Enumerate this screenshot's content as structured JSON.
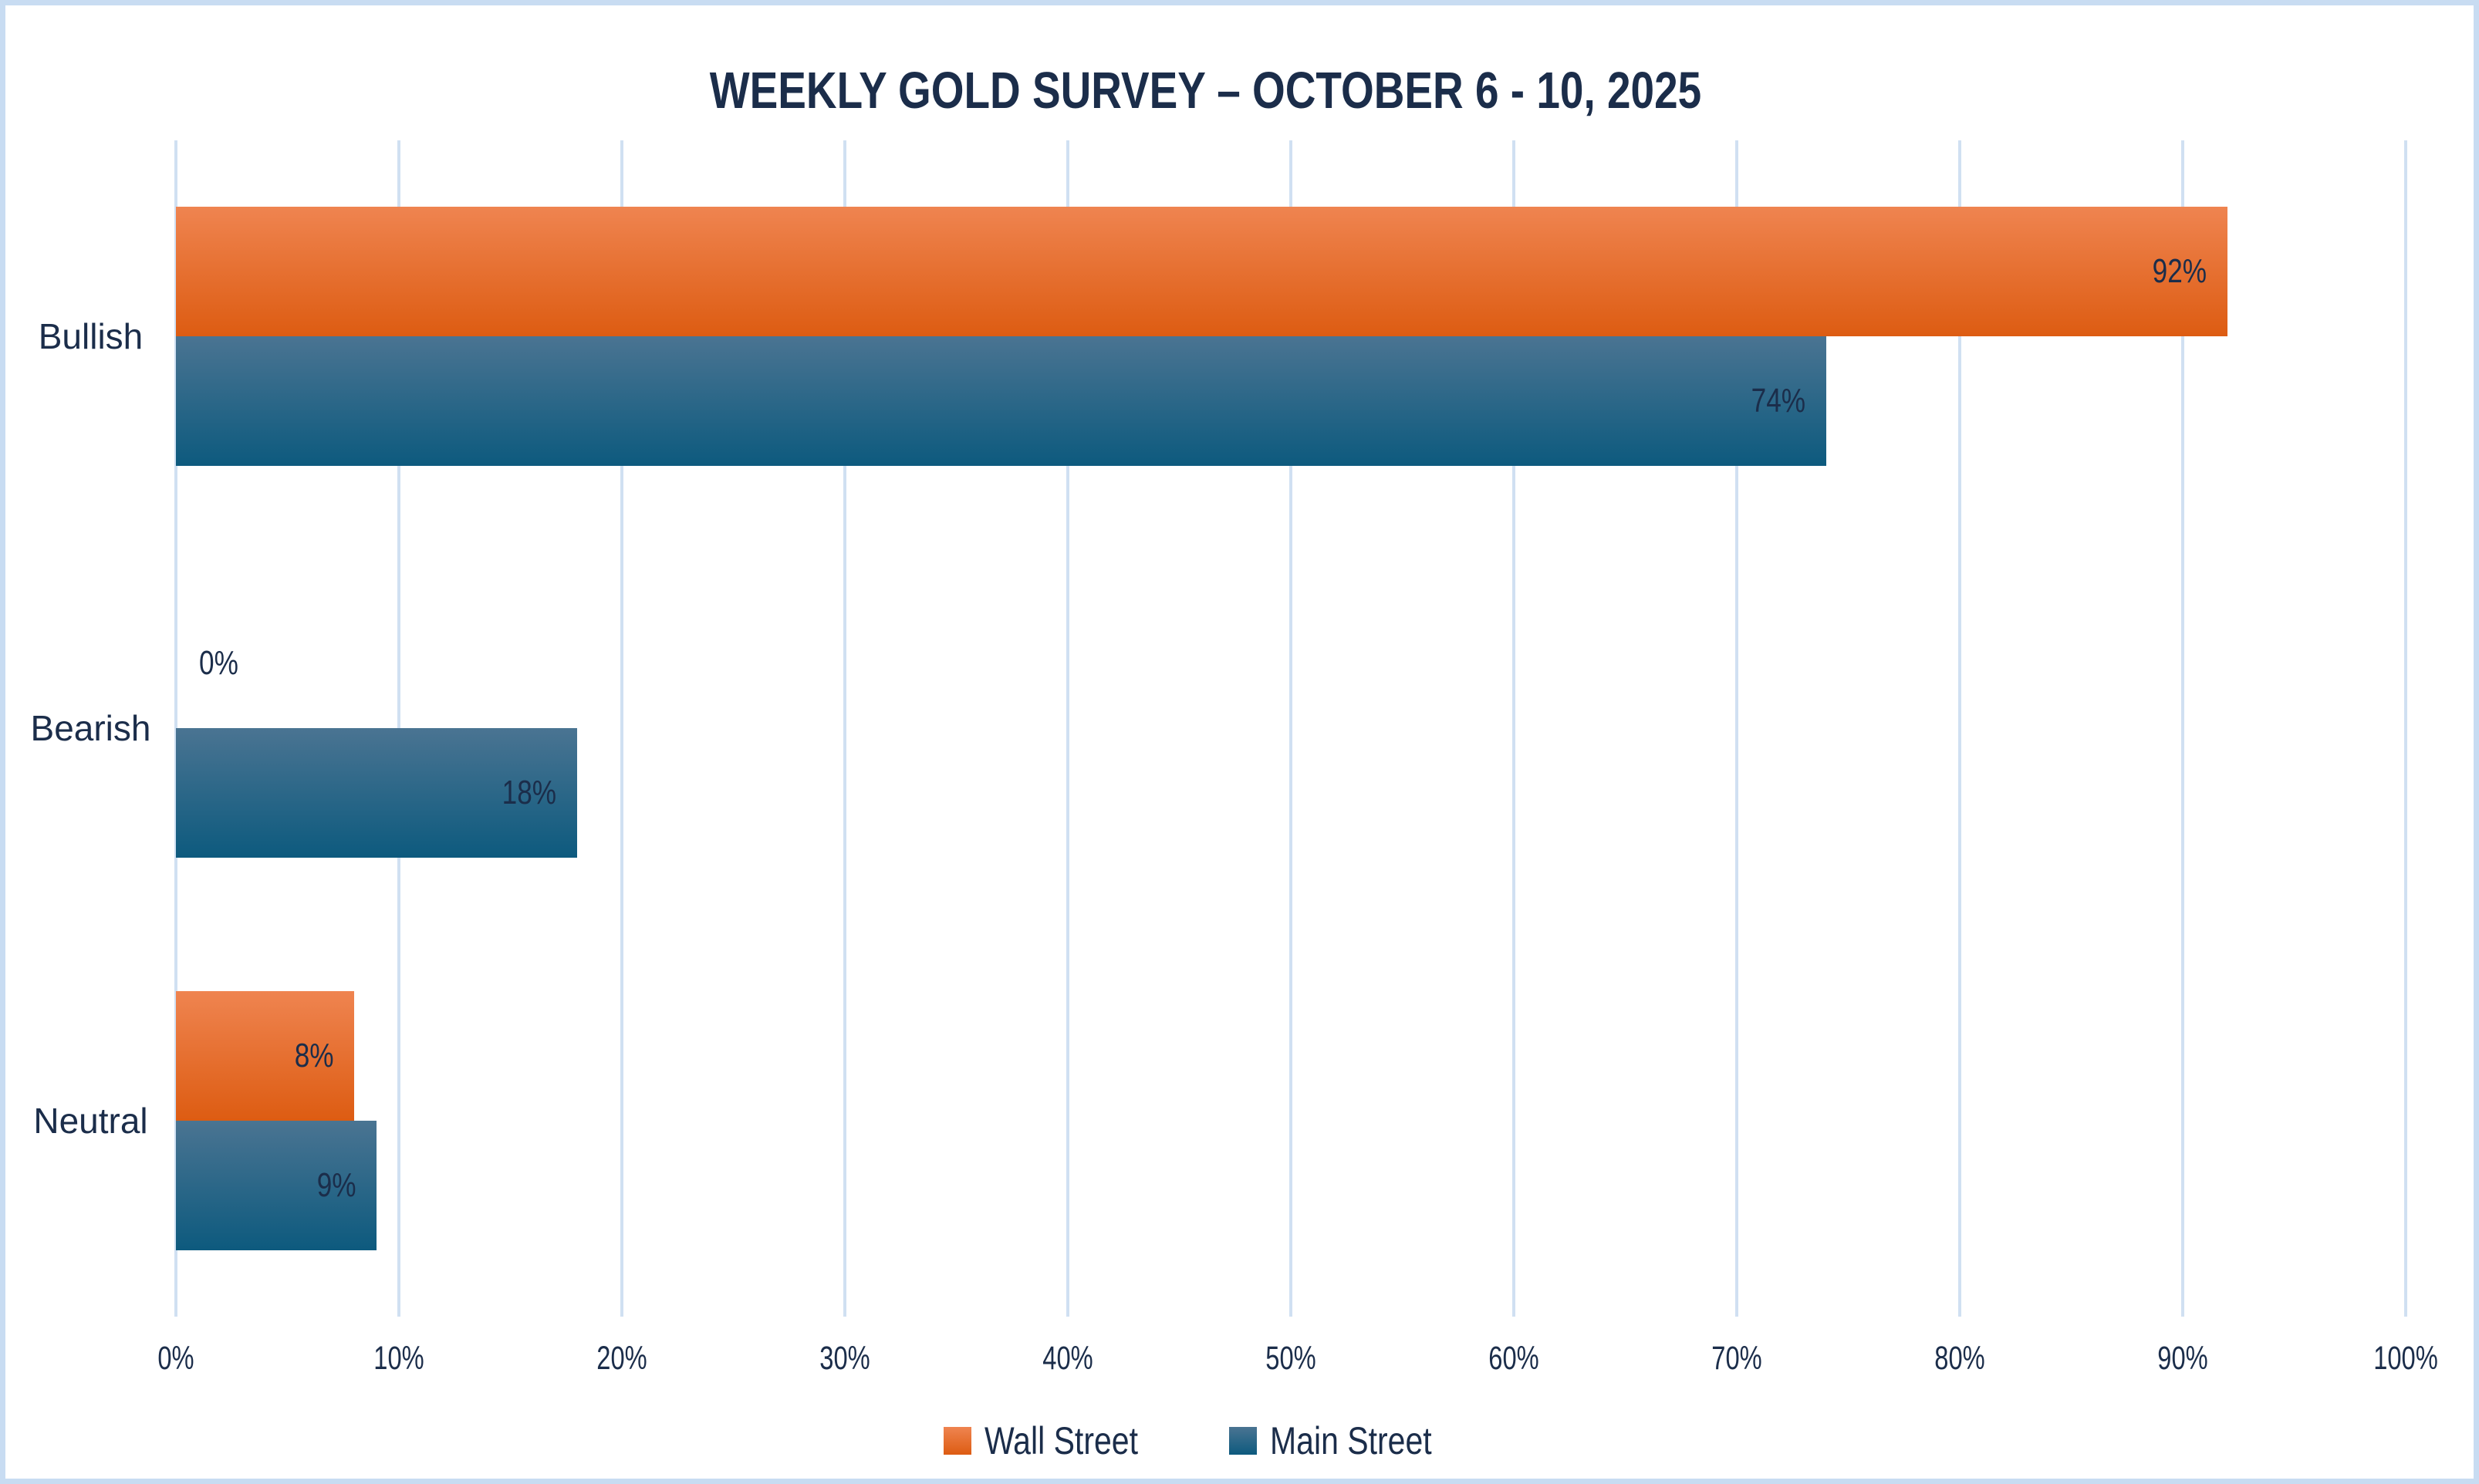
{
  "frame": {
    "border_color": "#c8dcf2",
    "background": "#ffffff"
  },
  "chart_data": {
    "type": "bar",
    "orientation": "horizontal",
    "title": "WEEKLY GOLD SURVEY – OCTOBER 6 - 10, 2025",
    "categories": [
      "Bullish",
      "Bearish",
      "Neutral"
    ],
    "series": [
      {
        "name": "Wall Street",
        "values": [
          92,
          0,
          8
        ],
        "labels": [
          "92%",
          "0%",
          "8%"
        ],
        "color_top": "#EF8450",
        "color_bottom": "#DD5C12"
      },
      {
        "name": "Main Street",
        "values": [
          74,
          18,
          9
        ],
        "labels": [
          "74%",
          "18%",
          "9%"
        ],
        "color_top": "#4A7492",
        "color_bottom": "#0D5A7E"
      }
    ],
    "value_suffix": "%",
    "xlim": [
      0,
      100
    ],
    "x_ticks": [
      "0%",
      "10%",
      "20%",
      "30%",
      "40%",
      "50%",
      "60%",
      "70%",
      "80%",
      "90%",
      "100%"
    ],
    "grid": true,
    "gridline_color": "#d0e0f2",
    "data_label_placement": "inside-end",
    "legend_position": "bottom",
    "text_color": "#1b2d4a"
  }
}
